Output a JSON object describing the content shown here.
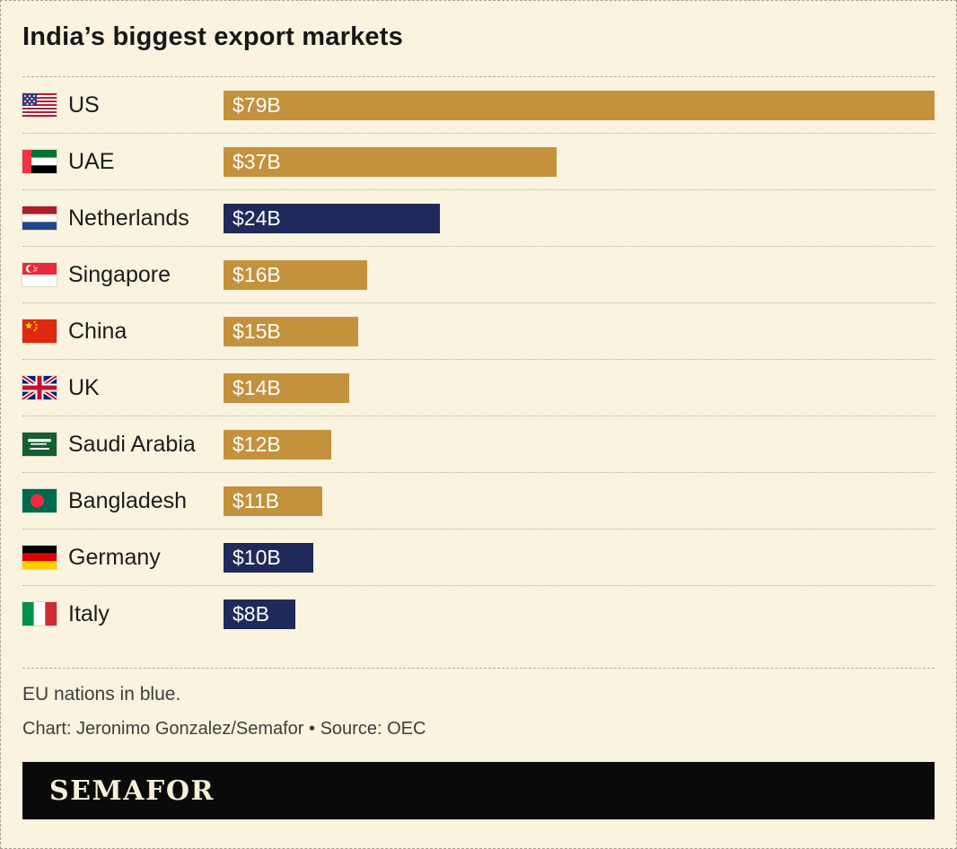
{
  "header": {
    "title": "India’s biggest export markets"
  },
  "chart_data": {
    "type": "bar",
    "orientation": "horizontal",
    "unit": "USD billions",
    "title": "India’s biggest export markets",
    "categories": [
      "US",
      "UAE",
      "Netherlands",
      "Singapore",
      "China",
      "UK",
      "Saudi Arabia",
      "Bangladesh",
      "Germany",
      "Italy"
    ],
    "values": [
      79,
      37,
      24,
      16,
      15,
      14,
      12,
      11,
      10,
      8
    ],
    "value_labels": [
      "$79B",
      "$37B",
      "$24B",
      "$16B",
      "$15B",
      "$14B",
      "$12B",
      "$11B",
      "$10B",
      "$8B"
    ],
    "eu_member": [
      false,
      false,
      true,
      false,
      false,
      false,
      false,
      false,
      true,
      true
    ],
    "xlim": [
      0,
      79
    ],
    "bar_color_default": "#C4913C",
    "bar_color_eu": "#1F2A5A",
    "legend_note": "EU nations in blue.",
    "flag_icons": [
      "us-flag-icon",
      "uae-flag-icon",
      "netherlands-flag-icon",
      "singapore-flag-icon",
      "china-flag-icon",
      "uk-flag-icon",
      "saudi-arabia-flag-icon",
      "bangladesh-flag-icon",
      "germany-flag-icon",
      "italy-flag-icon"
    ]
  },
  "footer": {
    "note": "EU nations in blue.",
    "credit": "Chart: Jeronimo Gonzalez/Semafor • Source: OEC",
    "logo": "SEMAFOR"
  }
}
